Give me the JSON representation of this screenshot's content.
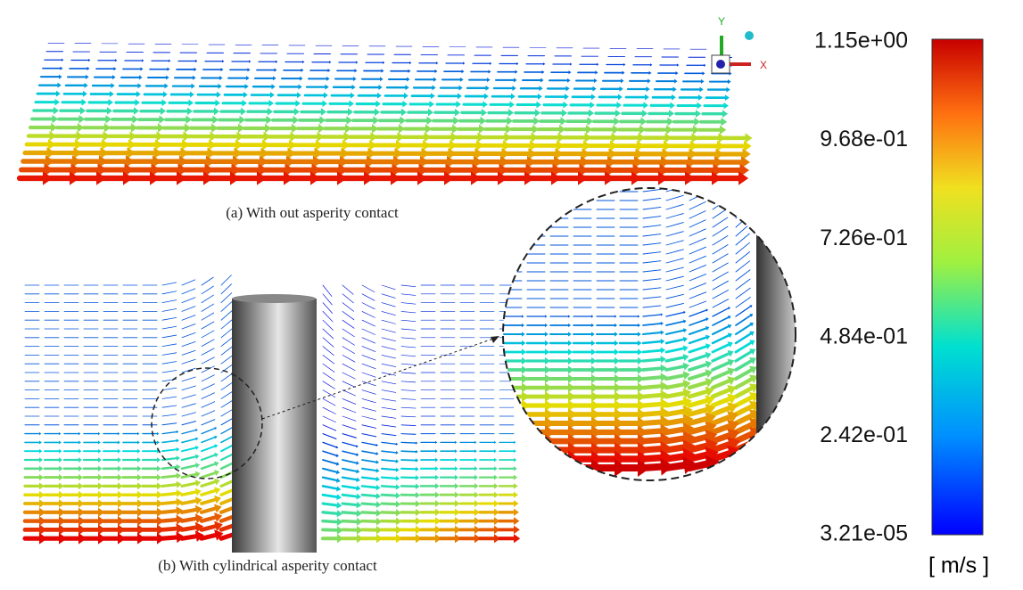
{
  "panels": {
    "a": {
      "caption": "(a) With out asperity contact"
    },
    "b": {
      "caption": "(b) With cylindrical asperity contact"
    }
  },
  "triad": {
    "y_label": "Y",
    "x_label": "X"
  },
  "colorbar": {
    "ticks": [
      "1.15e+00",
      "9.68e-01",
      "7.26e-01",
      "4.84e-01",
      "2.42e-01",
      "3.21e-05"
    ],
    "unit": "[ m/s ]"
  }
}
